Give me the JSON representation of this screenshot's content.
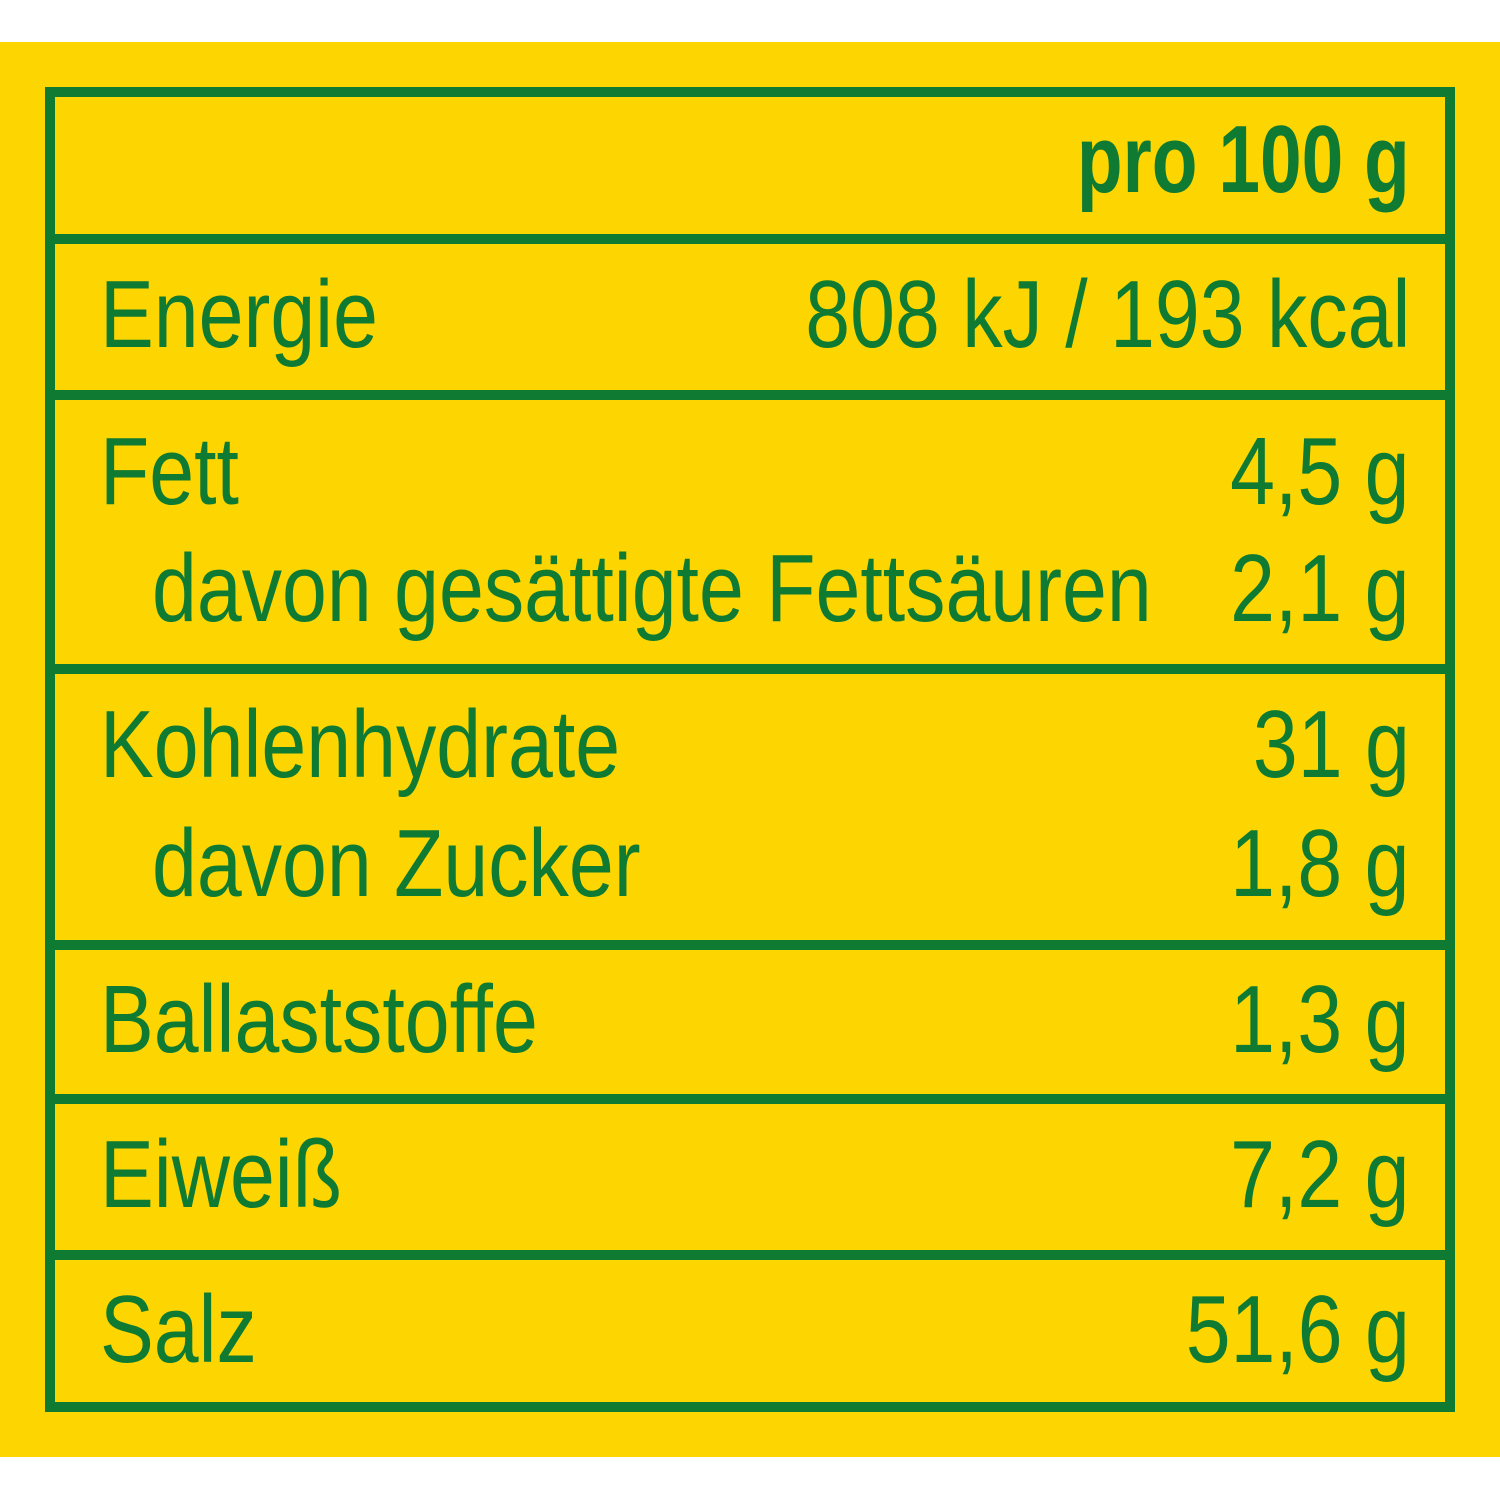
{
  "colors": {
    "background": "#FDD500",
    "text_and_lines": "#0E7A32"
  },
  "header": {
    "per": "pro 100 g"
  },
  "rows": [
    {
      "label": "Energie",
      "value": "808 kJ / 193 kcal"
    },
    {
      "label": "Fett",
      "value": "4,5 g"
    },
    {
      "label": "davon gesättigte Fettsäuren",
      "value": "2,1 g",
      "sub": true
    },
    {
      "label": "Kohlenhydrate",
      "value": "31 g"
    },
    {
      "label": "davon Zucker",
      "value": "1,8 g",
      "sub": true
    },
    {
      "label": "Ballaststoffe",
      "value": "1,3 g"
    },
    {
      "label": "Eiweiß",
      "value": "7,2 g"
    },
    {
      "label": "Salz",
      "value": "51,6 g"
    }
  ]
}
